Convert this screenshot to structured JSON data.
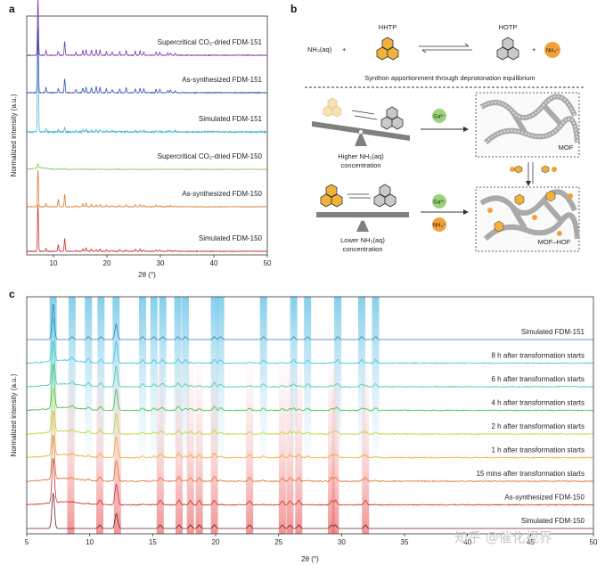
{
  "panel_labels": {
    "a": "a",
    "b": "b",
    "c": "c"
  },
  "chart_data": [
    {
      "type": "line",
      "panel": "a",
      "xlabel": "2θ (°)",
      "ylabel": "Normalized intensity (a.u.)",
      "xlim": [
        5,
        50
      ],
      "xticks": [
        10,
        20,
        30,
        40,
        50
      ],
      "peaks": [
        7.1,
        8.6,
        10.9,
        12.1,
        14.2,
        15.5,
        16.1,
        17.1,
        18.0,
        18.7,
        19.9,
        21.0,
        22.4,
        23.6,
        25.3,
        26.2,
        26.9,
        29.2,
        29.9,
        31.4,
        31.9,
        32.8
      ],
      "series": [
        {
          "name": "Simulated FDM-150",
          "color": "#c8302f",
          "amp": [
            1.0,
            0.06,
            0.14,
            0.28,
            0.02,
            0.05,
            0.07,
            0.05,
            0.04,
            0.05,
            0.03,
            0.02,
            0.04,
            0.03,
            0.04,
            0.05,
            0.03,
            0.03,
            0.03,
            0.02,
            0.02,
            0.02
          ]
        },
        {
          "name": "As-synthesized FDM-150",
          "color": "#d97b31",
          "amp": [
            0.9,
            0.08,
            0.18,
            0.3,
            0.03,
            0.07,
            0.09,
            0.06,
            0.05,
            0.05,
            0.04,
            0.03,
            0.04,
            0.05,
            0.05,
            0.06,
            0.04,
            0.04,
            0.03,
            0.02,
            0.03,
            0.02
          ]
        },
        {
          "name": "Supercritical CO₂-dried FDM-150",
          "color": "#82c23a",
          "amp": [
            0.15,
            0.02,
            0.03,
            0.04,
            0.0,
            0.01,
            0.01,
            0.0,
            0.0,
            0.0,
            0.0,
            0.0,
            0.01,
            0.0,
            0.0,
            0.0,
            0.0,
            0.0,
            0.0,
            0.0,
            0.0,
            0.0
          ]
        },
        {
          "name": "Simulated FDM-151",
          "color": "#4fb7d4",
          "amp": [
            1.0,
            0.03,
            0.02,
            0.04,
            0.01,
            0.02,
            0.02,
            0.01,
            0.02,
            0.02,
            0.01,
            0.01,
            0.01,
            0.01,
            0.01,
            0.01,
            0.01,
            0.01,
            0.01,
            0.01,
            0.01,
            0.01
          ]
        },
        {
          "name": "As-synthesized FDM-151",
          "color": "#3555b5",
          "amp": [
            1.0,
            0.08,
            0.06,
            0.22,
            0.05,
            0.07,
            0.09,
            0.08,
            0.1,
            0.08,
            0.06,
            0.05,
            0.06,
            0.08,
            0.06,
            0.07,
            0.06,
            0.05,
            0.05,
            0.04,
            0.04,
            0.03
          ]
        },
        {
          "name": "Supercritical CO₂-dried FDM-151",
          "color": "#7b3aa6",
          "amp": [
            1.0,
            0.08,
            0.07,
            0.24,
            0.05,
            0.08,
            0.1,
            0.09,
            0.1,
            0.09,
            0.06,
            0.06,
            0.07,
            0.08,
            0.07,
            0.08,
            0.06,
            0.06,
            0.05,
            0.04,
            0.04,
            0.03
          ]
        }
      ]
    },
    {
      "type": "line",
      "panel": "c",
      "xlabel": "2θ (°)",
      "ylabel": "Normalized intensity (a.u.)",
      "xlim": [
        5,
        50
      ],
      "xticks": [
        5,
        10,
        15,
        20,
        25,
        30,
        35,
        40,
        45,
        50
      ],
      "highlight_blue": [
        7.1,
        8.6,
        9.9,
        10.9,
        12.1,
        14.2,
        15.1,
        15.8,
        17.0,
        17.6,
        19.9,
        20.4,
        23.8,
        26.2,
        27.3,
        29.7,
        31.6,
        32.7
      ],
      "highlight_red": [
        8.5,
        10.8,
        12.2,
        15.6,
        17.1,
        18.0,
        18.7,
        19.9,
        22.7,
        25.3,
        25.9,
        26.6,
        29.2,
        29.5,
        31.9
      ],
      "series": [
        {
          "name": "Simulated FDM-150",
          "color": "#6d2020"
        },
        {
          "name": "As-synthesized FDM-150",
          "color": "#c8302f"
        },
        {
          "name": "15 mins after transformation starts",
          "color": "#e0702f"
        },
        {
          "name": "1 h after transformation starts",
          "color": "#f0a623"
        },
        {
          "name": "2 h after transformation starts",
          "color": "#b9d630"
        },
        {
          "name": "4 h after transformation starts",
          "color": "#3cbf4b"
        },
        {
          "name": "6 h after transformation starts",
          "color": "#3ccfa9"
        },
        {
          "name": "8 h after transformation starts",
          "color": "#3dc4dc"
        },
        {
          "name": "Simulated FDM-151",
          "color": "#2a7fb5"
        }
      ]
    }
  ],
  "scheme": {
    "hhtp": "HHTP",
    "hotp": "HOTP",
    "nh3_left": "NH₃(aq)",
    "plus": "+",
    "nh4": "NH₄⁺",
    "caption": "Synthon apportionment through deprotonation equilibrium",
    "ga": "Ga³⁺",
    "mof": "MOF",
    "mof_hof": "MOF–HOF",
    "higher_label_1": "Higher NH₃(aq)",
    "higher_label_2": "concentration",
    "lower_label_1": "Lower NH₃(aq)",
    "lower_label_2": "concentration"
  },
  "watermark": "知乎 @催化视界",
  "colors": {
    "hhtp_fill": "#f2b23a",
    "hotp_fill": "#c9c9c9",
    "ga_fill": "#9bd47a",
    "nh4_fill": "#f2a13a"
  }
}
